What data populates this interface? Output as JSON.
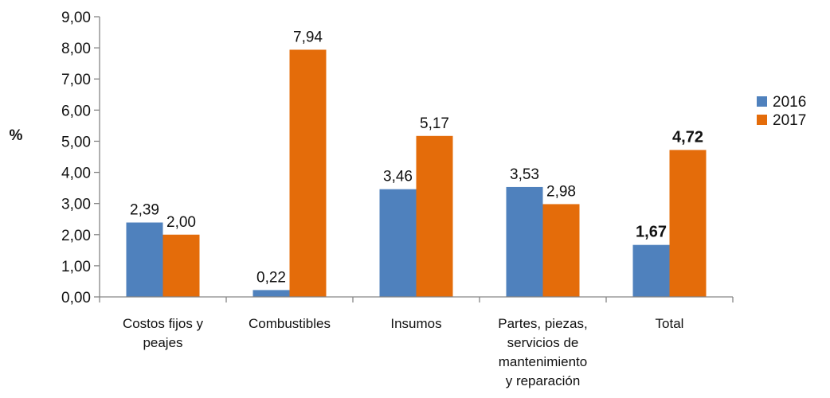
{
  "chart_data": {
    "type": "bar",
    "title": "",
    "xlabel": "",
    "ylabel": "%",
    "ylim": [
      0,
      9
    ],
    "ytick_step": 1,
    "ytick_labels": [
      "0,00",
      "1,00",
      "2,00",
      "3,00",
      "4,00",
      "5,00",
      "6,00",
      "7,00",
      "8,00",
      "9,00"
    ],
    "grid": false,
    "legend_position": "right",
    "categories": [
      [
        "Costos fijos y",
        "peajes"
      ],
      [
        "Combustibles"
      ],
      [
        "Insumos"
      ],
      [
        "Partes, piezas,",
        "servicios de",
        "mantenimiento",
        "y reparación"
      ],
      [
        "Total"
      ]
    ],
    "series": [
      {
        "name": "2016",
        "color": "#4f81bd",
        "values": [
          2.39,
          0.22,
          3.46,
          3.53,
          1.67
        ],
        "labels": [
          "2,39",
          "0,22",
          "3,46",
          "3,53",
          "1,67"
        ]
      },
      {
        "name": "2017",
        "color": "#e46c0a",
        "values": [
          2.0,
          7.94,
          5.17,
          2.98,
          4.72
        ],
        "labels": [
          "2,00",
          "7,94",
          "5,17",
          "2,98",
          "4,72"
        ]
      }
    ],
    "bold_label_categories": [
      4
    ]
  }
}
